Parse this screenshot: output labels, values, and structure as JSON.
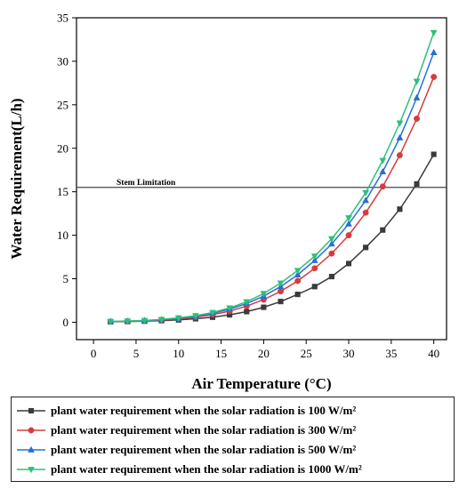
{
  "chart_data": {
    "type": "line",
    "xlabel": "Air Temperature (°C)",
    "ylabel": "Water Requirement(L/h)",
    "xlim": [
      -2,
      41.5
    ],
    "ylim": [
      -2,
      35
    ],
    "xticks": [
      0,
      5,
      10,
      15,
      20,
      25,
      30,
      35,
      40
    ],
    "yticks": [
      0,
      5,
      10,
      15,
      20,
      25,
      30,
      35
    ],
    "grid": false,
    "legend_position": "below",
    "x": [
      2,
      4,
      6,
      8,
      10,
      12,
      14,
      16,
      18,
      20,
      22,
      24,
      26,
      28,
      30,
      32,
      34,
      36,
      38,
      40
    ],
    "series": [
      {
        "name": "plant water requirement when the solar radiation is 100",
        "unit": "W/m²",
        "color": "#3a3a3a",
        "marker": "square",
        "values": [
          0.05,
          0.08,
          0.12,
          0.18,
          0.27,
          0.4,
          0.58,
          0.85,
          1.22,
          1.72,
          2.38,
          3.2,
          4.1,
          5.25,
          6.75,
          8.6,
          10.6,
          13.0,
          15.9,
          19.3
        ]
      },
      {
        "name": "plant water requirement when the solar radiation is 300",
        "unit": "W/m²",
        "color": "#d63c3c",
        "marker": "circle",
        "values": [
          0.07,
          0.1,
          0.15,
          0.25,
          0.38,
          0.58,
          0.87,
          1.28,
          1.85,
          2.6,
          3.55,
          4.75,
          6.2,
          7.9,
          10.0,
          12.6,
          15.6,
          19.2,
          23.4,
          28.2
        ]
      },
      {
        "name": "plant water requirement when the solar radiation is 500",
        "unit": "W/m²",
        "color": "#2a6fd6",
        "marker": "triangle-up",
        "values": [
          0.08,
          0.12,
          0.18,
          0.29,
          0.45,
          0.68,
          1.02,
          1.5,
          2.15,
          3.0,
          4.1,
          5.45,
          7.1,
          9.0,
          11.3,
          14.0,
          17.3,
          21.2,
          25.8,
          31.0
        ]
      },
      {
        "name": "plant water requirement when the solar radiation is 1000",
        "unit": "W/m²",
        "color": "#2cc07a",
        "marker": "triangle-down",
        "values": [
          0.09,
          0.14,
          0.2,
          0.32,
          0.5,
          0.75,
          1.12,
          1.65,
          2.35,
          3.3,
          4.5,
          5.95,
          7.6,
          9.6,
          12.0,
          14.9,
          18.6,
          22.9,
          27.7,
          33.3
        ]
      }
    ],
    "reference_line": {
      "label": "Stem Limitation",
      "y": 15.5
    }
  }
}
